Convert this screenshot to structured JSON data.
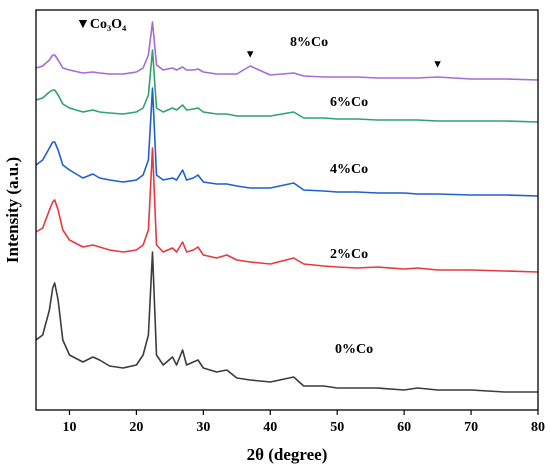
{
  "chart_data": {
    "type": "line",
    "x_label": "2θ (degree)",
    "y_label": "Intensity (a.u.)",
    "xlim": [
      5,
      80
    ],
    "xticks": [
      10,
      20,
      30,
      40,
      50,
      60,
      70,
      80
    ],
    "ylim": [
      0,
      400
    ],
    "annotations": [
      {
        "text": "▼Co₃O₄"
      },
      {
        "text": "▼",
        "x": 37
      },
      {
        "text": "▼",
        "x": 65
      }
    ],
    "x": [
      5,
      6,
      7,
      7.5,
      7.8,
      8.3,
      9,
      10,
      12,
      13.5,
      14.5,
      16,
      18,
      20,
      21,
      21.8,
      22.4,
      23,
      24,
      25.4,
      26,
      26.9,
      27.5,
      28.5,
      29.2,
      30,
      32,
      33.5,
      35,
      37,
      40,
      43.5,
      45,
      48,
      50,
      53,
      56,
      60,
      62,
      65,
      70,
      75,
      80
    ],
    "series": [
      {
        "name": "0%Co",
        "color": "#3c3c3c",
        "values": [
          70,
          75,
          100,
          122,
          127,
          110,
          70,
          55,
          48,
          53,
          50,
          44,
          42,
          45,
          55,
          75,
          158,
          55,
          45,
          53,
          45,
          60,
          45,
          48,
          50,
          42,
          38,
          40,
          32,
          30,
          28,
          33,
          24,
          24,
          22,
          22,
          22,
          20,
          22,
          20,
          20,
          18,
          18
        ]
      },
      {
        "name": "2%Co",
        "color": "#e8383d",
        "values": [
          178,
          182,
          200,
          208,
          210,
          200,
          180,
          170,
          163,
          165,
          163,
          160,
          158,
          160,
          165,
          180,
          262,
          165,
          158,
          162,
          158,
          168,
          158,
          160,
          163,
          155,
          152,
          155,
          150,
          148,
          146,
          152,
          146,
          144,
          143,
          142,
          143,
          141,
          142,
          140,
          140,
          139,
          138
        ]
      },
      {
        "name": "4%Co",
        "color": "#1f5fcf",
        "values": [
          245,
          250,
          262,
          268,
          268,
          260,
          245,
          240,
          232,
          236,
          232,
          230,
          228,
          230,
          235,
          250,
          322,
          235,
          230,
          232,
          230,
          240,
          230,
          232,
          235,
          228,
          226,
          226,
          224,
          222,
          222,
          227,
          220,
          219,
          218,
          218,
          217,
          217,
          216,
          216,
          215,
          215,
          214
        ]
      },
      {
        "name": "6%Co",
        "color": "#2ea36b",
        "values": [
          310,
          312,
          318,
          320,
          320,
          315,
          306,
          302,
          298,
          300,
          298,
          297,
          296,
          298,
          302,
          315,
          360,
          302,
          298,
          302,
          300,
          305,
          300,
          301,
          302,
          298,
          296,
          296,
          294,
          294,
          294,
          298,
          292,
          292,
          291,
          291,
          290,
          290,
          290,
          289,
          289,
          289,
          288
        ]
      },
      {
        "name": "8%Co",
        "color": "#a56bd6",
        "values": [
          342,
          344,
          350,
          355,
          355,
          350,
          342,
          340,
          337,
          338,
          337,
          336,
          336,
          338,
          342,
          355,
          388,
          345,
          340,
          342,
          340,
          343,
          340,
          340,
          341,
          338,
          336,
          336,
          336,
          344,
          335,
          337,
          334,
          333,
          333,
          333,
          332,
          332,
          332,
          333,
          331,
          331,
          330
        ]
      }
    ]
  }
}
